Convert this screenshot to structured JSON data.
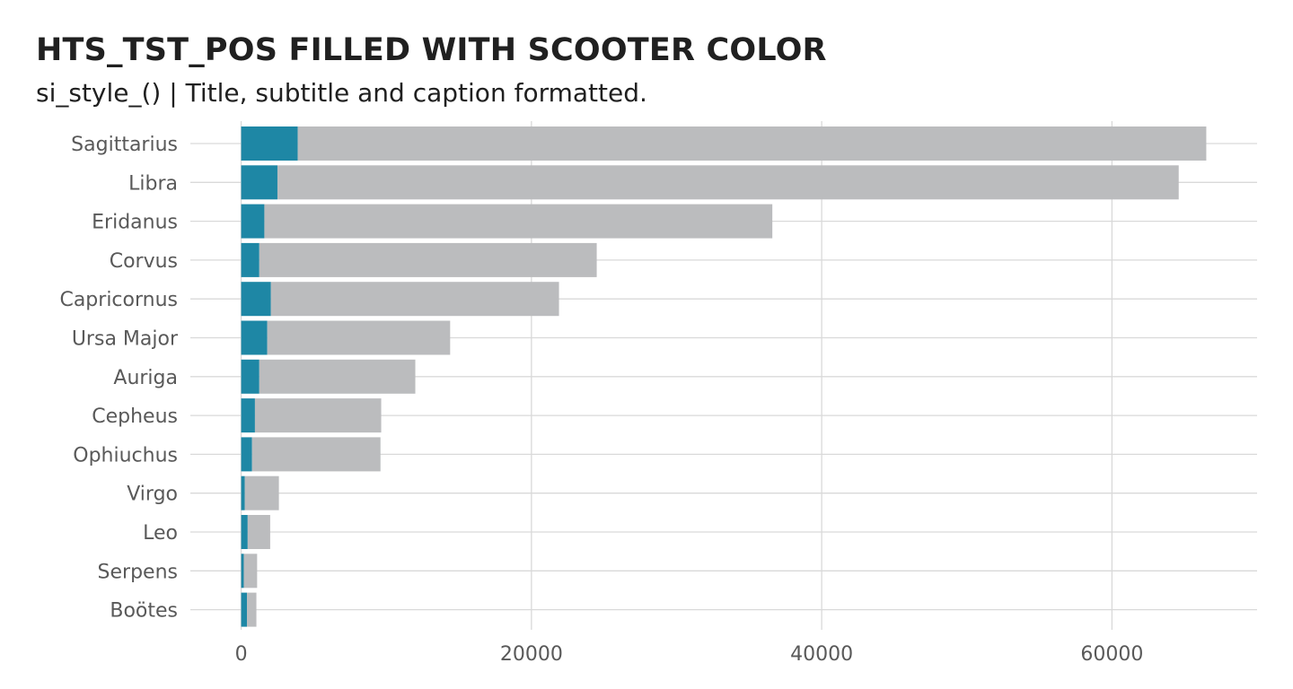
{
  "chart_data": {
    "type": "bar",
    "orientation": "horizontal",
    "stacked": true,
    "title": "HTS_TST_POS FILLED WITH SCOOTER COLOR",
    "subtitle": "si_style_() | Title, subtitle and caption formatted.",
    "xlabel": "",
    "ylabel": "",
    "xlim": [
      -3500,
      70000
    ],
    "x_ticks": [
      0,
      20000,
      40000,
      60000
    ],
    "x_tick_labels": [
      "0",
      "20000",
      "40000",
      "60000"
    ],
    "categories": [
      "Sagittarius",
      "Libra",
      "Eridanus",
      "Corvus",
      "Capricornus",
      "Ursa Major",
      "Auriga",
      "Cepheus",
      "Ophiuchus",
      "Virgo",
      "Leo",
      "Serpens",
      "Boötes"
    ],
    "series": [
      {
        "color": "#1e87a5",
        "values": [
          3900,
          2500,
          1600,
          1250,
          2050,
          1800,
          1250,
          950,
          750,
          250,
          450,
          180,
          400
        ]
      },
      {
        "color": "#bbbcbe",
        "values": [
          62600,
          62100,
          35000,
          23250,
          19850,
          12600,
          10750,
          8700,
          8850,
          2350,
          1550,
          920,
          650
        ]
      }
    ],
    "grid": true,
    "legend": "none"
  }
}
